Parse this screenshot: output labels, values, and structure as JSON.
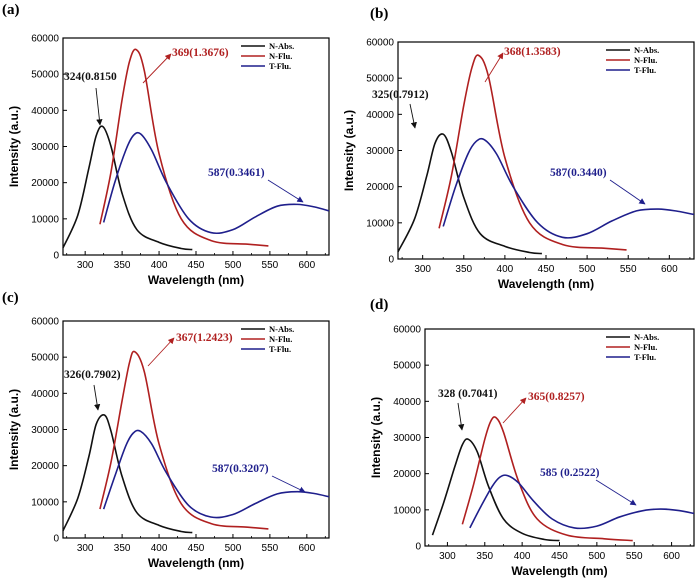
{
  "chart_data": [
    {
      "panel_label": "(a)",
      "type": "line",
      "xlabel": "Wavelength (nm)",
      "ylabel": "Intensity (a.u.)",
      "xlim": [
        270,
        630
      ],
      "ylim": [
        0,
        60000
      ],
      "xticks": [
        "300",
        "350",
        "400",
        "450",
        "500",
        "550",
        "600"
      ],
      "yticks": [
        "0",
        "10000",
        "20000",
        "30000",
        "40000",
        "50000",
        "60000"
      ],
      "legend": {
        "placement": "top-right",
        "entries": [
          "N-Abs.",
          "N-Flu.",
          "T-Flu."
        ]
      },
      "series": [
        {
          "name": "N-Abs.",
          "color": "#111111",
          "x": [
            270,
            290,
            305,
            315,
            324,
            335,
            350,
            370,
            400,
            430,
            445
          ],
          "y": [
            2000,
            11000,
            24000,
            33000,
            35500,
            30000,
            17000,
            7000,
            3500,
            1800,
            1500
          ]
        },
        {
          "name": "N-Flu.",
          "color": "#b02020",
          "x": [
            320,
            335,
            350,
            360,
            369,
            380,
            400,
            430,
            470,
            520,
            548
          ],
          "y": [
            8500,
            23000,
            43000,
            53500,
            56800,
            51000,
            28000,
            10000,
            4000,
            3000,
            2500
          ]
        },
        {
          "name": "T-Flu.",
          "color": "#1f1f8c",
          "x": [
            325,
            340,
            355,
            365,
            375,
            390,
            410,
            440,
            470,
            500,
            530,
            560,
            587,
            610,
            630
          ],
          "y": [
            9000,
            20000,
            29000,
            33000,
            33500,
            29000,
            20000,
            10000,
            6200,
            7000,
            10500,
            13500,
            14000,
            13300,
            12200
          ]
        }
      ],
      "annotations": [
        {
          "text": "324(0.8150",
          "color": "#111111"
        },
        {
          "text": "369(1.3676)",
          "color": "#b02020"
        },
        {
          "text": "587(0.3461)",
          "color": "#1f1f8c"
        }
      ]
    },
    {
      "panel_label": "(b)",
      "type": "line",
      "xlabel": "Wavelength (nm)",
      "ylabel": "Intensity (a.u.)",
      "xlim": [
        270,
        630
      ],
      "ylim": [
        0,
        60000
      ],
      "xticks": [
        "300",
        "350",
        "400",
        "450",
        "500",
        "550",
        "600"
      ],
      "yticks": [
        "0",
        "10000",
        "20000",
        "30000",
        "40000",
        "50000",
        "60000"
      ],
      "legend": {
        "placement": "top-right",
        "entries": [
          "N-Abs.",
          "N-Flu.",
          "T-Flu."
        ]
      },
      "series": [
        {
          "name": "N-Abs.",
          "color": "#111111",
          "x": [
            270,
            290,
            305,
            315,
            325,
            335,
            350,
            370,
            400,
            430,
            445
          ],
          "y": [
            2000,
            11000,
            23000,
            32000,
            34500,
            29500,
            17000,
            7000,
            3500,
            1800,
            1500
          ]
        },
        {
          "name": "N-Flu.",
          "color": "#b02020",
          "x": [
            320,
            335,
            350,
            360,
            368,
            380,
            400,
            430,
            470,
            520,
            548
          ],
          "y": [
            8500,
            23000,
            42500,
            53000,
            56300,
            50500,
            28000,
            10000,
            4000,
            3000,
            2500
          ]
        },
        {
          "name": "T-Flu.",
          "color": "#1f1f8c",
          "x": [
            325,
            340,
            355,
            365,
            375,
            390,
            410,
            440,
            470,
            500,
            530,
            560,
            587,
            610,
            630
          ],
          "y": [
            9000,
            20000,
            29000,
            32500,
            33000,
            29000,
            20000,
            10000,
            6000,
            7000,
            10500,
            13300,
            13800,
            13200,
            12300
          ]
        }
      ],
      "annotations": [
        {
          "text": "325(0.7912)",
          "color": "#111111"
        },
        {
          "text": "368(1.3583)",
          "color": "#b02020"
        },
        {
          "text": "587(0.3440)",
          "color": "#1f1f8c"
        }
      ]
    },
    {
      "panel_label": "(c)",
      "type": "line",
      "xlabel": "Wavelength (nm)",
      "ylabel": "Intensity (a.u.)",
      "xlim": [
        270,
        630
      ],
      "ylim": [
        0,
        60000
      ],
      "xticks": [
        "300",
        "350",
        "400",
        "450",
        "500",
        "550",
        "600"
      ],
      "yticks": [
        "0",
        "10000",
        "20000",
        "30000",
        "40000",
        "50000",
        "60000"
      ],
      "legend": {
        "placement": "top-right",
        "entries": [
          "N-Abs.",
          "N-Flu.",
          "T-Flu."
        ]
      },
      "series": [
        {
          "name": "N-Abs.",
          "color": "#111111",
          "x": [
            270,
            290,
            305,
            315,
            326,
            335,
            350,
            370,
            400,
            430,
            445
          ],
          "y": [
            2000,
            11000,
            22500,
            31500,
            34000,
            29500,
            17000,
            7000,
            3500,
            1800,
            1500
          ]
        },
        {
          "name": "N-Flu.",
          "color": "#b02020",
          "x": [
            320,
            335,
            350,
            360,
            367,
            380,
            400,
            430,
            470,
            520,
            548
          ],
          "y": [
            8000,
            21000,
            38000,
            48500,
            51500,
            46000,
            26000,
            9500,
            4000,
            3000,
            2500
          ]
        },
        {
          "name": "T-Flu.",
          "color": "#1f1f8c",
          "x": [
            325,
            340,
            355,
            365,
            375,
            390,
            410,
            440,
            470,
            500,
            530,
            560,
            587,
            610,
            630
          ],
          "y": [
            8000,
            17000,
            25500,
            29000,
            29500,
            26000,
            18000,
            9000,
            5800,
            6500,
            9500,
            12200,
            12800,
            12300,
            11400
          ]
        }
      ],
      "annotations": [
        {
          "text": "326(0.7902)",
          "color": "#111111"
        },
        {
          "text": "367(1.2423)",
          "color": "#b02020"
        },
        {
          "text": "587(0.3207)",
          "color": "#1f1f8c"
        }
      ]
    },
    {
      "panel_label": "(d)",
      "type": "line",
      "xlabel": "Wavelength (nm)",
      "ylabel": "Intensity (a.u.)",
      "xlim": [
        270,
        630
      ],
      "ylim": [
        0,
        60000
      ],
      "xticks": [
        "300",
        "350",
        "400",
        "450",
        "500",
        "550",
        "600"
      ],
      "yticks": [
        "0",
        "10000",
        "20000",
        "30000",
        "40000",
        "50000",
        "60000"
      ],
      "legend": {
        "placement": "top-right",
        "entries": [
          "N-Abs.",
          "N-Flu.",
          "T-Flu."
        ]
      },
      "series": [
        {
          "name": "N-Abs.",
          "color": "#111111",
          "x": [
            280,
            295,
            310,
            320,
            328,
            340,
            355,
            375,
            400,
            430,
            450
          ],
          "y": [
            3000,
            12000,
            22000,
            28000,
            29500,
            26000,
            16500,
            7500,
            3500,
            1800,
            1500
          ]
        },
        {
          "name": "N-Flu.",
          "color": "#b02020",
          "x": [
            320,
            335,
            350,
            358,
            365,
            375,
            395,
            420,
            460,
            510,
            548
          ],
          "y": [
            6000,
            17000,
            29500,
            34500,
            35500,
            31500,
            18000,
            7500,
            3000,
            2000,
            1500
          ]
        },
        {
          "name": "T-Flu.",
          "color": "#1f1f8c",
          "x": [
            330,
            345,
            360,
            370,
            380,
            395,
            415,
            440,
            470,
            500,
            530,
            560,
            585,
            610,
            630
          ],
          "y": [
            5000,
            11000,
            16500,
            19000,
            19500,
            17500,
            12500,
            7500,
            5000,
            5500,
            8000,
            9700,
            10200,
            9800,
            9000
          ]
        }
      ],
      "annotations": [
        {
          "text": "328 (0.7041)",
          "color": "#111111"
        },
        {
          "text": "365(0.8257)",
          "color": "#b02020"
        },
        {
          "text": "585 (0.2522)",
          "color": "#1f1f8c"
        }
      ]
    }
  ]
}
